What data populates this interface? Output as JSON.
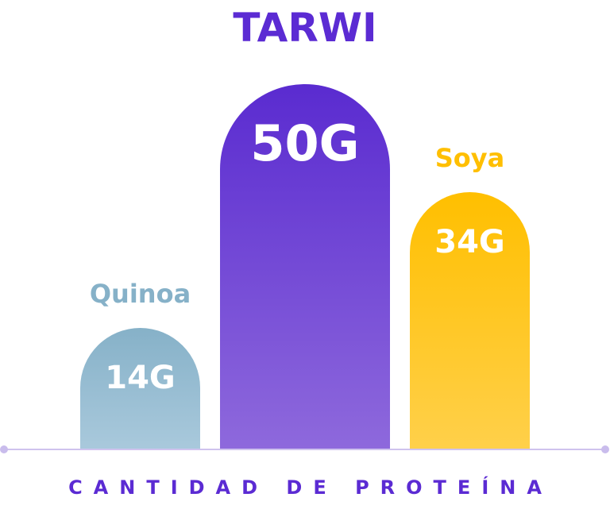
{
  "chart_data": {
    "type": "bar",
    "title": "TARWI",
    "xlabel": "CANTIDAD DE PROTEÍNA",
    "ylabel": "",
    "categories": [
      "Quinoa",
      "Tarwi",
      "Soya"
    ],
    "values": [
      14,
      50,
      34
    ],
    "value_labels": [
      "14G",
      "50G",
      "34G"
    ],
    "unit": "g",
    "grid": false,
    "colors": {
      "Quinoa": [
        "#86b1c8",
        "#a9c9dc"
      ],
      "Tarwi": [
        "#5a2bd0",
        "#8e69dc"
      ],
      "Soya": [
        "#ffbf00",
        "#ffd04a"
      ]
    },
    "label_colors": {
      "Quinoa": "#86b1c8",
      "Soya": "#ffbf00"
    }
  }
}
